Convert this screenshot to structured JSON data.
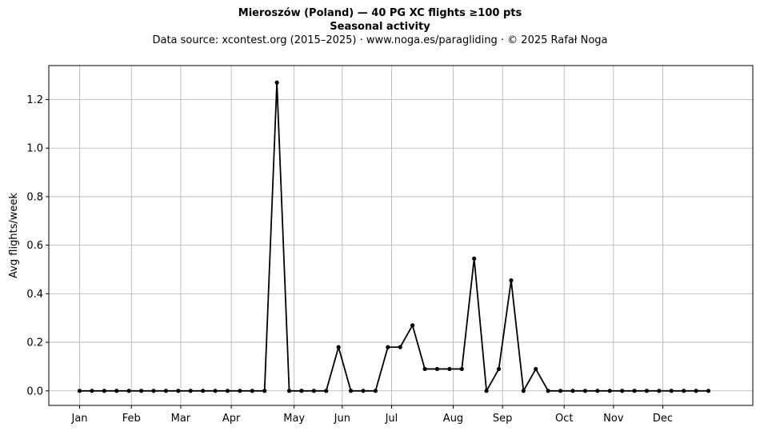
{
  "chart_data": {
    "type": "line",
    "title": "Mieroszów (Poland)  —  40 PG XC flights ≥100 pts",
    "title_line2": "Seasonal activity",
    "subtitle": "Data source: xcontest.org (2015–2025)  ·  www.noga.es/paragliding  ·  © 2025 Rafał Noga",
    "xlabel": "",
    "ylabel": "Avg flights/week",
    "ylim": [
      -0.06,
      1.34
    ],
    "yticks": [
      0.0,
      0.2,
      0.4,
      0.6,
      0.8,
      1.0,
      1.2
    ],
    "ytick_labels": [
      "0.0",
      "0.2",
      "0.4",
      "0.6",
      "0.8",
      "1.0",
      "1.2"
    ],
    "xlim": [
      -2.5,
      54.6
    ],
    "xticks": [
      0,
      4.2,
      8.2,
      12.3,
      17.4,
      21.3,
      25.3,
      30.3,
      34.3,
      39.3,
      43.3,
      47.3
    ],
    "xtick_labels": [
      "Jan",
      "Feb",
      "Mar",
      "Apr",
      "May",
      "Jun",
      "Jul",
      "Aug",
      "Sep",
      "Oct",
      "Nov",
      "Dec"
    ],
    "grid": true,
    "series": [
      {
        "color": "#000000",
        "marker": "dot",
        "x": [
          0,
          1,
          2,
          3,
          4,
          5,
          6,
          7,
          8,
          9,
          10,
          11,
          12,
          13,
          14,
          15,
          16,
          17,
          18,
          19,
          20,
          21,
          22,
          23,
          24,
          25,
          26,
          27,
          28,
          29,
          30,
          31,
          32,
          33,
          34,
          35,
          36,
          37,
          38,
          39,
          40,
          41,
          42,
          43,
          44,
          45,
          46,
          47,
          48,
          49,
          50,
          51
        ],
        "values": [
          0,
          0,
          0,
          0,
          0,
          0,
          0,
          0,
          0,
          0,
          0,
          0,
          0,
          0,
          0,
          0,
          1.27,
          0,
          0,
          0,
          0,
          0.18,
          0,
          0,
          0,
          0.18,
          0.18,
          0.27,
          0.09,
          0.09,
          0.09,
          0.09,
          0.545,
          0,
          0.09,
          0.455,
          0,
          0.09,
          0,
          0,
          0,
          0,
          0,
          0,
          0,
          0,
          0,
          0,
          0,
          0,
          0,
          0
        ]
      }
    ]
  }
}
